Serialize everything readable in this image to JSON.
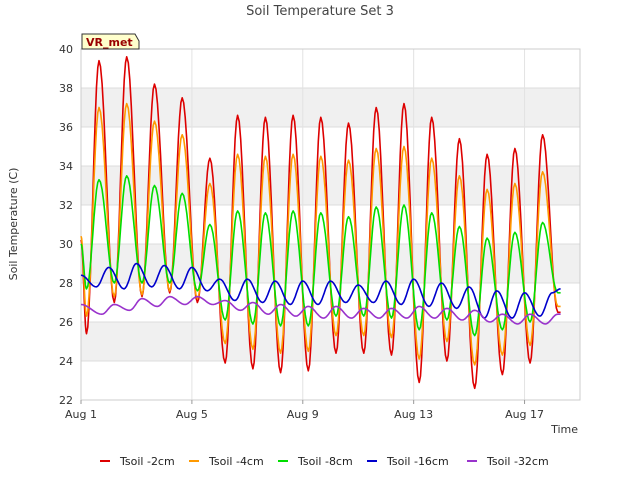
{
  "chart_data": {
    "type": "line",
    "title": "Soil Temperature Set 3",
    "xlabel": "Time",
    "ylabel": "Soil Temperature (C)",
    "badge": "VR_met",
    "xlim": [
      0,
      18
    ],
    "ylim": [
      22,
      40
    ],
    "yticks": [
      22,
      24,
      26,
      28,
      30,
      32,
      34,
      36,
      38,
      40
    ],
    "xticks": [
      {
        "v": 0,
        "label": "Aug 1"
      },
      {
        "v": 4,
        "label": "Aug 5"
      },
      {
        "v": 8,
        "label": "Aug 9"
      },
      {
        "v": 12,
        "label": "Aug 13"
      },
      {
        "v": 16,
        "label": "Aug 17"
      }
    ],
    "grid": true,
    "legend_position": "bottom",
    "day_phase": 0.55,
    "end_day": 17.3,
    "series": [
      {
        "name": "Tsoil -2cm",
        "color": "#dd0000",
        "start": 30.2,
        "peaks": [
          39.4,
          39.6,
          38.2,
          37.5,
          34.4,
          36.6,
          36.5,
          36.6,
          36.5,
          36.2,
          37.0,
          37.2,
          36.5,
          35.4,
          34.6,
          34.9,
          35.6
        ],
        "troughs": [
          25.4,
          27.0,
          27.3,
          27.5,
          27.0,
          23.9,
          23.6,
          23.4,
          23.5,
          24.4,
          24.4,
          24.3,
          22.9,
          24.0,
          22.6,
          23.3,
          23.9,
          26.5
        ]
      },
      {
        "name": "Tsoil -4cm",
        "color": "#ff9900",
        "start": 30.4,
        "peaks": [
          37.0,
          37.2,
          36.3,
          35.6,
          33.1,
          34.6,
          34.5,
          34.6,
          34.5,
          34.3,
          34.9,
          35.0,
          34.4,
          33.5,
          32.8,
          33.1,
          33.7
        ],
        "troughs": [
          26.3,
          27.3,
          27.4,
          27.6,
          27.2,
          24.9,
          24.6,
          24.4,
          24.5,
          25.3,
          25.3,
          25.2,
          24.1,
          25.0,
          23.8,
          24.3,
          24.8,
          26.8
        ]
      },
      {
        "name": "Tsoil -8cm",
        "color": "#00dd00",
        "start": 30.0,
        "peaks": [
          33.3,
          33.5,
          33.0,
          32.6,
          31.0,
          31.7,
          31.6,
          31.7,
          31.6,
          31.4,
          31.9,
          32.0,
          31.6,
          30.9,
          30.3,
          30.6,
          31.1
        ],
        "troughs": [
          27.7,
          28.0,
          28.0,
          28.0,
          27.6,
          26.1,
          25.9,
          25.8,
          25.8,
          26.3,
          26.3,
          26.2,
          25.6,
          26.1,
          25.3,
          25.6,
          26.0,
          27.5
        ]
      },
      {
        "name": "Tsoil -16cm",
        "color": "#0000cc",
        "start": 28.4,
        "peaks": [
          28.8,
          29.0,
          28.9,
          28.8,
          28.2,
          28.2,
          28.1,
          28.1,
          28.1,
          27.9,
          28.1,
          28.2,
          28.0,
          27.8,
          27.6,
          27.5,
          27.5
        ],
        "troughs": [
          27.8,
          27.7,
          27.8,
          27.7,
          27.6,
          27.1,
          27.0,
          26.9,
          26.9,
          27.0,
          27.0,
          26.9,
          26.8,
          26.7,
          26.2,
          26.2,
          26.3,
          27.7
        ],
        "lag": 0.35
      },
      {
        "name": "Tsoil -32cm",
        "color": "#9933cc",
        "start": 26.9,
        "peaks": [
          26.9,
          27.2,
          27.3,
          27.3,
          27.1,
          27.0,
          26.9,
          26.8,
          26.8,
          26.7,
          26.7,
          26.8,
          26.7,
          26.6,
          26.4,
          26.4,
          26.4
        ],
        "troughs": [
          26.4,
          26.6,
          26.8,
          26.9,
          26.9,
          26.6,
          26.4,
          26.3,
          26.2,
          26.2,
          26.2,
          26.2,
          26.2,
          26.1,
          26.0,
          25.9,
          25.9,
          26.4
        ],
        "lag": 0.55
      }
    ]
  }
}
